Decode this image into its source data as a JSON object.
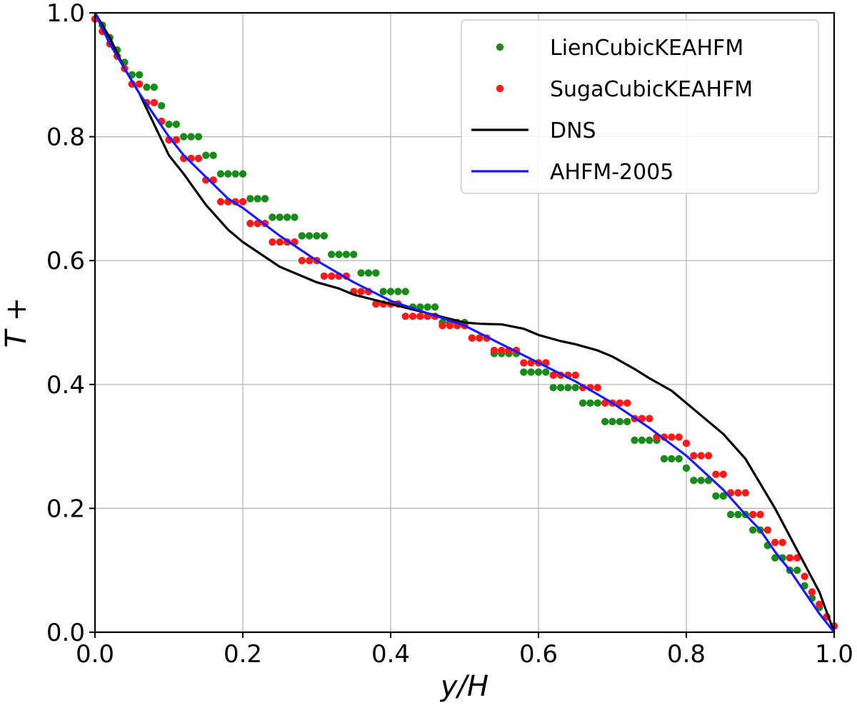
{
  "chart_data": {
    "type": "line",
    "xlabel": "y/H",
    "ylabel": "T +",
    "xlim": [
      0.0,
      1.0
    ],
    "ylim": [
      0.0,
      1.0
    ],
    "xticks": [
      "0.0",
      "0.2",
      "0.4",
      "0.6",
      "0.8",
      "1.0"
    ],
    "yticks": [
      "0.0",
      "0.2",
      "0.4",
      "0.6",
      "0.8",
      "1.0"
    ],
    "grid": true,
    "legend_position": "top-right",
    "colors": {
      "LienCubicKEAHFM": "#1a8a1a",
      "SugaCubicKEAHFM": "#ff1a1a",
      "DNS": "#000000",
      "AHFM-2005": "#1a1aff"
    },
    "series": [
      {
        "name": "LienCubicKEAHFM",
        "style": "markers",
        "x": [
          0.0,
          0.01,
          0.02,
          0.03,
          0.04,
          0.05,
          0.06,
          0.07,
          0.08,
          0.09,
          0.1,
          0.11,
          0.12,
          0.13,
          0.14,
          0.15,
          0.16,
          0.17,
          0.18,
          0.19,
          0.2,
          0.21,
          0.22,
          0.23,
          0.24,
          0.25,
          0.26,
          0.27,
          0.28,
          0.29,
          0.3,
          0.31,
          0.32,
          0.33,
          0.34,
          0.35,
          0.36,
          0.37,
          0.38,
          0.39,
          0.4,
          0.41,
          0.42,
          0.43,
          0.44,
          0.45,
          0.46,
          0.47,
          0.48,
          0.49,
          0.5,
          0.51,
          0.52,
          0.53,
          0.54,
          0.55,
          0.56,
          0.57,
          0.58,
          0.59,
          0.6,
          0.61,
          0.62,
          0.63,
          0.64,
          0.65,
          0.66,
          0.67,
          0.68,
          0.69,
          0.7,
          0.71,
          0.72,
          0.73,
          0.74,
          0.75,
          0.76,
          0.77,
          0.78,
          0.79,
          0.8,
          0.81,
          0.82,
          0.83,
          0.84,
          0.85,
          0.86,
          0.87,
          0.88,
          0.89,
          0.9,
          0.91,
          0.92,
          0.93,
          0.94,
          0.95,
          0.96,
          0.97,
          0.98,
          0.99,
          1.0
        ],
        "y": [
          0.99,
          0.98,
          0.96,
          0.94,
          0.92,
          0.9,
          0.9,
          0.88,
          0.88,
          0.85,
          0.82,
          0.82,
          0.8,
          0.8,
          0.8,
          0.77,
          0.77,
          0.74,
          0.74,
          0.74,
          0.74,
          0.7,
          0.7,
          0.7,
          0.67,
          0.67,
          0.67,
          0.67,
          0.64,
          0.64,
          0.64,
          0.64,
          0.61,
          0.61,
          0.61,
          0.61,
          0.58,
          0.58,
          0.58,
          0.55,
          0.55,
          0.55,
          0.55,
          0.525,
          0.525,
          0.525,
          0.525,
          0.5,
          0.5,
          0.5,
          0.5,
          0.475,
          0.475,
          0.475,
          0.45,
          0.45,
          0.45,
          0.45,
          0.42,
          0.42,
          0.42,
          0.42,
          0.395,
          0.395,
          0.395,
          0.395,
          0.37,
          0.37,
          0.37,
          0.34,
          0.34,
          0.34,
          0.34,
          0.31,
          0.31,
          0.31,
          0.31,
          0.28,
          0.28,
          0.28,
          0.265,
          0.245,
          0.245,
          0.245,
          0.22,
          0.22,
          0.19,
          0.19,
          0.19,
          0.165,
          0.165,
          0.14,
          0.12,
          0.12,
          0.1,
          0.1,
          0.075,
          0.055,
          0.04,
          0.025,
          0.01
        ]
      },
      {
        "name": "SugaCubicKEAHFM",
        "style": "markers",
        "x": [
          0.0,
          0.01,
          0.02,
          0.03,
          0.04,
          0.05,
          0.06,
          0.07,
          0.08,
          0.09,
          0.1,
          0.11,
          0.12,
          0.13,
          0.14,
          0.15,
          0.16,
          0.17,
          0.18,
          0.19,
          0.2,
          0.21,
          0.22,
          0.23,
          0.24,
          0.25,
          0.26,
          0.27,
          0.28,
          0.29,
          0.3,
          0.31,
          0.32,
          0.33,
          0.34,
          0.35,
          0.36,
          0.37,
          0.38,
          0.39,
          0.4,
          0.41,
          0.42,
          0.43,
          0.44,
          0.45,
          0.46,
          0.47,
          0.48,
          0.49,
          0.5,
          0.51,
          0.52,
          0.53,
          0.54,
          0.55,
          0.56,
          0.57,
          0.58,
          0.59,
          0.6,
          0.61,
          0.62,
          0.63,
          0.64,
          0.65,
          0.66,
          0.67,
          0.68,
          0.69,
          0.7,
          0.71,
          0.72,
          0.73,
          0.74,
          0.75,
          0.76,
          0.77,
          0.78,
          0.79,
          0.8,
          0.81,
          0.82,
          0.83,
          0.84,
          0.85,
          0.86,
          0.87,
          0.88,
          0.89,
          0.9,
          0.91,
          0.92,
          0.93,
          0.94,
          0.95,
          0.96,
          0.97,
          0.98,
          0.99,
          1.0
        ],
        "y": [
          0.99,
          0.97,
          0.95,
          0.93,
          0.91,
          0.885,
          0.885,
          0.855,
          0.855,
          0.825,
          0.795,
          0.795,
          0.765,
          0.765,
          0.765,
          0.73,
          0.73,
          0.695,
          0.695,
          0.695,
          0.695,
          0.66,
          0.66,
          0.66,
          0.63,
          0.63,
          0.63,
          0.63,
          0.6,
          0.6,
          0.6,
          0.575,
          0.575,
          0.575,
          0.575,
          0.55,
          0.55,
          0.55,
          0.53,
          0.53,
          0.53,
          0.53,
          0.51,
          0.51,
          0.51,
          0.51,
          0.51,
          0.495,
          0.495,
          0.495,
          0.495,
          0.475,
          0.475,
          0.475,
          0.455,
          0.455,
          0.455,
          0.455,
          0.435,
          0.435,
          0.435,
          0.435,
          0.415,
          0.415,
          0.415,
          0.415,
          0.395,
          0.395,
          0.395,
          0.37,
          0.37,
          0.37,
          0.37,
          0.345,
          0.345,
          0.345,
          0.315,
          0.315,
          0.315,
          0.315,
          0.305,
          0.285,
          0.285,
          0.285,
          0.255,
          0.255,
          0.225,
          0.225,
          0.225,
          0.19,
          0.19,
          0.165,
          0.145,
          0.145,
          0.12,
          0.12,
          0.09,
          0.065,
          0.045,
          0.025,
          0.01
        ]
      },
      {
        "name": "DNS",
        "style": "line",
        "x": [
          0.0,
          0.02,
          0.04,
          0.06,
          0.08,
          0.1,
          0.12,
          0.15,
          0.18,
          0.2,
          0.25,
          0.3,
          0.33,
          0.35,
          0.4,
          0.45,
          0.5,
          0.52,
          0.55,
          0.58,
          0.6,
          0.63,
          0.65,
          0.68,
          0.7,
          0.73,
          0.75,
          0.78,
          0.8,
          0.82,
          0.85,
          0.88,
          0.9,
          0.92,
          0.94,
          0.96,
          0.98,
          1.0
        ],
        "y": [
          1.0,
          0.96,
          0.91,
          0.87,
          0.82,
          0.77,
          0.74,
          0.69,
          0.65,
          0.63,
          0.59,
          0.565,
          0.555,
          0.545,
          0.53,
          0.515,
          0.5,
          0.498,
          0.497,
          0.49,
          0.48,
          0.47,
          0.465,
          0.455,
          0.445,
          0.425,
          0.41,
          0.39,
          0.37,
          0.35,
          0.32,
          0.28,
          0.24,
          0.2,
          0.155,
          0.11,
          0.065,
          0.0
        ]
      },
      {
        "name": "AHFM-2005",
        "style": "line",
        "x": [
          0.0,
          0.02,
          0.04,
          0.06,
          0.08,
          0.1,
          0.12,
          0.15,
          0.18,
          0.2,
          0.25,
          0.3,
          0.35,
          0.4,
          0.45,
          0.5,
          0.55,
          0.6,
          0.65,
          0.7,
          0.75,
          0.8,
          0.85,
          0.88,
          0.9,
          0.92,
          0.94,
          0.96,
          0.98,
          1.0
        ],
        "y": [
          1.0,
          0.95,
          0.91,
          0.87,
          0.835,
          0.8,
          0.77,
          0.735,
          0.7,
          0.685,
          0.64,
          0.6,
          0.565,
          0.535,
          0.515,
          0.495,
          0.465,
          0.435,
          0.405,
          0.37,
          0.33,
          0.285,
          0.23,
          0.19,
          0.165,
          0.13,
          0.1,
          0.065,
          0.03,
          0.0
        ]
      }
    ]
  }
}
